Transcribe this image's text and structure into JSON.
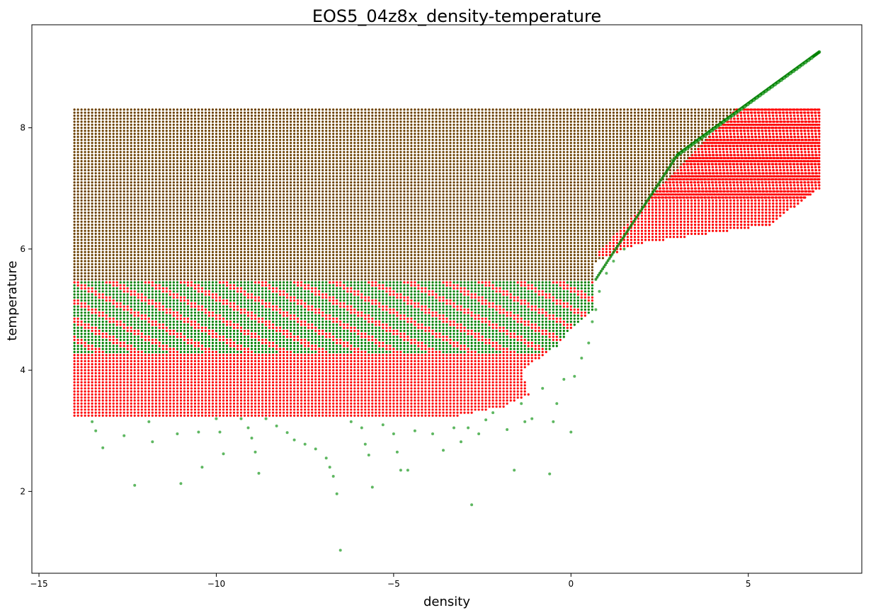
{
  "chart_data": {
    "type": "scatter",
    "title": "EOS5_04z8x_density-temperature",
    "xlabel": "density",
    "ylabel": "temperature",
    "xlim": [
      -15.2,
      8.2
    ],
    "ylim": [
      0.65,
      9.7
    ],
    "xticks": [
      -15,
      -10,
      -5,
      0,
      5
    ],
    "yticks": [
      2,
      4,
      6,
      8
    ],
    "grid": false,
    "legend": "none",
    "colors": {
      "red_series": "#ff0000",
      "green_series": "#008000",
      "overlap": "#6b4000",
      "green_light": "#4caf50"
    },
    "red_grid": {
      "density_range": [
        -14,
        7
      ],
      "density_step": 0.1,
      "temperature_range": [
        3.25,
        8.3
      ],
      "temperature_step": 0.05,
      "boundary": [
        {
          "temperature": 3.25,
          "max_density": -3.2
        },
        {
          "temperature": 3.4,
          "max_density": -1.9
        },
        {
          "temperature": 3.6,
          "max_density": -1.2
        },
        {
          "temperature": 4.0,
          "max_density": -1.4
        },
        {
          "temperature": 4.4,
          "max_density": -0.4
        },
        {
          "temperature": 4.7,
          "max_density": 0.0
        },
        {
          "temperature": 5.0,
          "max_density": 0.6
        },
        {
          "temperature": 5.8,
          "max_density": 0.7
        },
        {
          "temperature": 6.1,
          "max_density": 2.0
        },
        {
          "temperature": 6.4,
          "max_density": 5.6
        },
        {
          "temperature": 7.0,
          "max_density": 7.0
        },
        {
          "temperature": 8.3,
          "max_density": 7.0
        }
      ]
    },
    "green_grid": {
      "density_range": [
        -14,
        7
      ],
      "density_step": 0.1,
      "temperature_range": [
        3.3,
        8.3
      ],
      "temperature_step": 0.05,
      "diagonal_tail": {
        "density": [
          3.0,
          7.0
        ],
        "temperature": [
          7.55,
          9.25
        ]
      }
    },
    "green_scatter": [
      [
        -13.5,
        3.15
      ],
      [
        -13.4,
        3.0
      ],
      [
        -13.2,
        2.72
      ],
      [
        -12.6,
        2.92
      ],
      [
        -12.3,
        2.1
      ],
      [
        -11.9,
        3.15
      ],
      [
        -11.8,
        2.82
      ],
      [
        -11.1,
        2.95
      ],
      [
        -11.0,
        2.13
      ],
      [
        -10.5,
        2.98
      ],
      [
        -10.4,
        2.4
      ],
      [
        -10.0,
        3.2
      ],
      [
        -9.9,
        2.98
      ],
      [
        -9.8,
        2.62
      ],
      [
        -9.3,
        3.2
      ],
      [
        -9.1,
        3.05
      ],
      [
        -9.0,
        2.88
      ],
      [
        -8.9,
        2.65
      ],
      [
        -8.8,
        2.3
      ],
      [
        -8.6,
        3.2
      ],
      [
        -8.3,
        3.08
      ],
      [
        -8.0,
        2.97
      ],
      [
        -7.8,
        2.85
      ],
      [
        -7.5,
        2.78
      ],
      [
        -7.2,
        2.7
      ],
      [
        -6.9,
        2.55
      ],
      [
        -6.8,
        2.4
      ],
      [
        -6.7,
        2.25
      ],
      [
        -6.6,
        1.96
      ],
      [
        -6.5,
        1.03
      ],
      [
        -6.2,
        3.15
      ],
      [
        -5.9,
        3.05
      ],
      [
        -5.8,
        2.78
      ],
      [
        -5.7,
        2.6
      ],
      [
        -5.6,
        2.07
      ],
      [
        -5.3,
        3.1
      ],
      [
        -5.0,
        2.95
      ],
      [
        -4.9,
        2.65
      ],
      [
        -4.8,
        2.35
      ],
      [
        -4.6,
        2.35
      ],
      [
        -4.4,
        3.0
      ],
      [
        -3.9,
        2.95
      ],
      [
        -3.6,
        2.68
      ],
      [
        -3.3,
        3.05
      ],
      [
        -3.1,
        2.82
      ],
      [
        -2.9,
        3.05
      ],
      [
        -2.8,
        1.78
      ],
      [
        -2.6,
        2.95
      ],
      [
        -2.4,
        3.18
      ],
      [
        -2.2,
        3.3
      ],
      [
        -1.8,
        3.02
      ],
      [
        -1.6,
        2.35
      ],
      [
        -1.4,
        3.45
      ],
      [
        -1.3,
        3.15
      ],
      [
        -1.1,
        3.2
      ],
      [
        -0.8,
        3.7
      ],
      [
        -0.6,
        2.29
      ],
      [
        -0.5,
        3.15
      ],
      [
        -0.4,
        3.45
      ],
      [
        -0.2,
        3.85
      ],
      [
        0.0,
        2.98
      ],
      [
        0.1,
        3.9
      ],
      [
        0.3,
        4.2
      ],
      [
        0.5,
        4.45
      ],
      [
        0.6,
        4.8
      ],
      [
        0.7,
        5.0
      ],
      [
        0.8,
        5.3
      ],
      [
        1.0,
        5.6
      ],
      [
        1.2,
        5.8
      ],
      [
        1.5,
        6.0
      ]
    ]
  }
}
